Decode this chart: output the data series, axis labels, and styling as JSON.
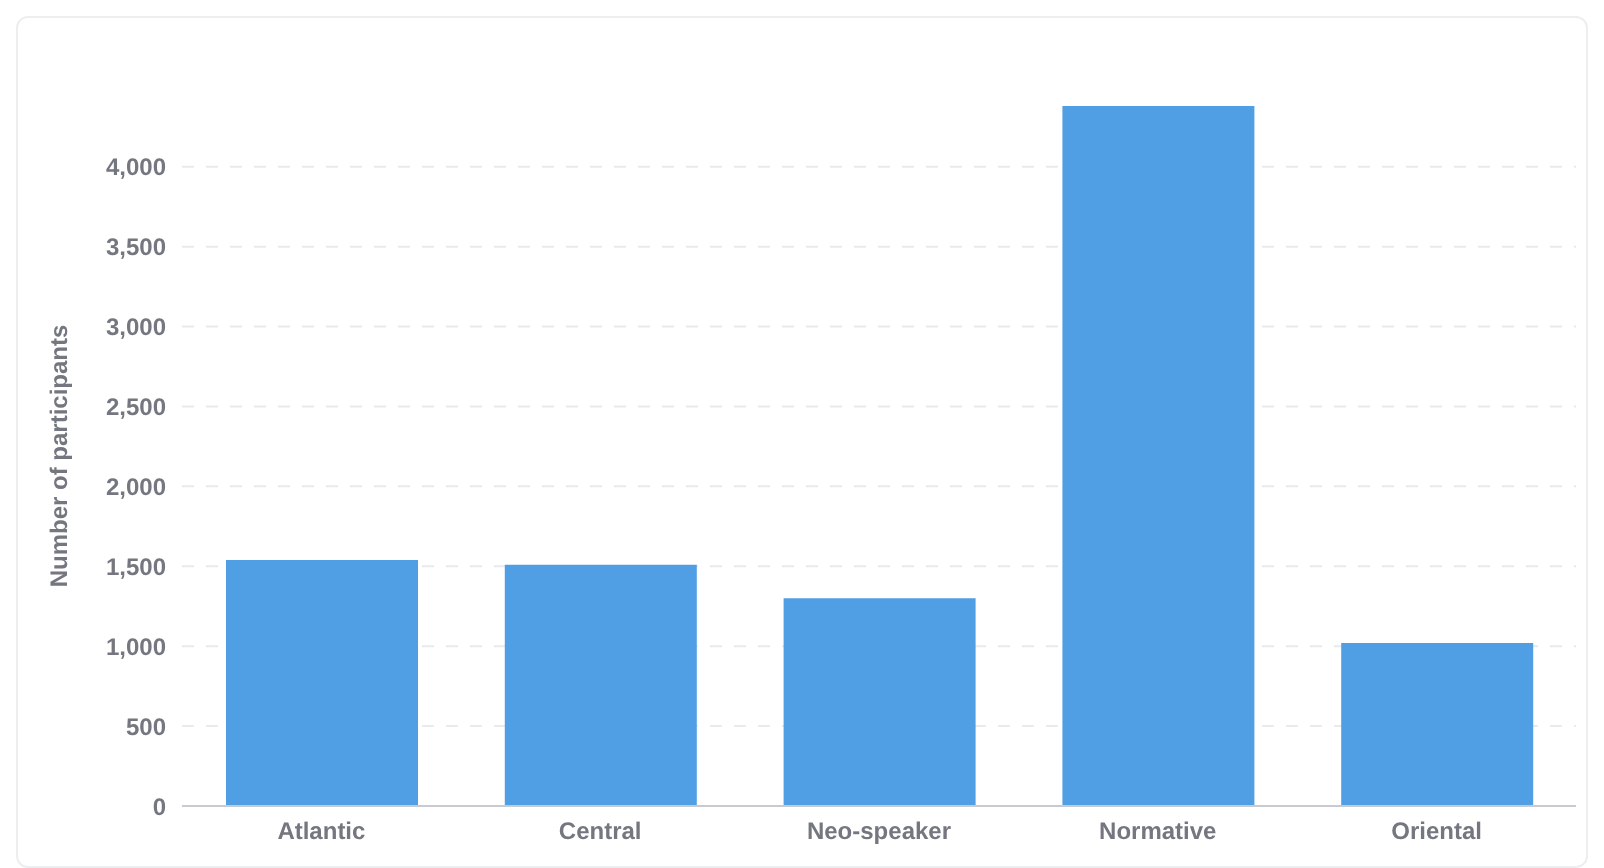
{
  "chart_data": {
    "type": "bar",
    "ylabel": "Number of participants",
    "categories": [
      "Atlantic",
      "Central",
      "Neo-speaker",
      "Normative",
      "Oriental"
    ],
    "values": [
      1540,
      1510,
      1300,
      4380,
      1020
    ],
    "color": "#509ee3",
    "ylim": [
      0,
      4380
    ],
    "yticks": [
      0,
      500,
      {
        "value": 1000,
        "label": "1,000"
      },
      {
        "value": 1500,
        "label": "1,500"
      },
      {
        "value": 2000,
        "label": "2,000"
      },
      {
        "value": 2500,
        "label": "2,500"
      },
      {
        "value": 3000,
        "label": "3,000"
      },
      {
        "value": 3500,
        "label": "3,500"
      },
      {
        "value": 4000,
        "label": "4,000"
      }
    ],
    "grid": "y"
  }
}
